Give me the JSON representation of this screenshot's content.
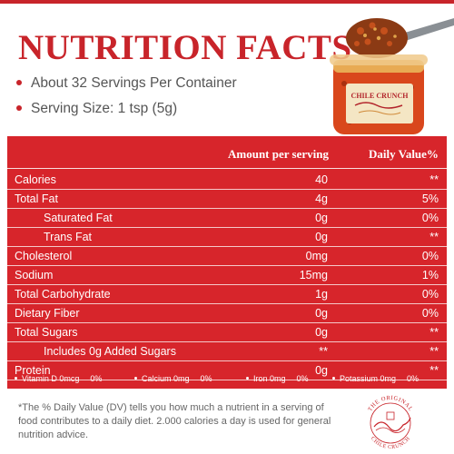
{
  "title": "NUTRITION FACTS",
  "bullets": [
    "About 32 Servings Per Container",
    "Serving Size: 1 tsp (5g)"
  ],
  "product": {
    "label": "CHILE CRUNCH"
  },
  "panel": {
    "header_amount": "Amount per serving",
    "header_dv": "Daily Value%",
    "rows": [
      {
        "name": "Calories",
        "amount": "40",
        "dv": "**"
      },
      {
        "name": "Total Fat",
        "amount": "4g",
        "dv": "5%"
      },
      {
        "name": "Saturated Fat",
        "amount": "0g",
        "dv": "0%"
      },
      {
        "name": "Trans Fat",
        "amount": "0g",
        "dv": "**"
      },
      {
        "name": "Cholesterol",
        "amount": "0mg",
        "dv": "0%"
      },
      {
        "name": "Sodium",
        "amount": "15mg",
        "dv": "1%"
      },
      {
        "name": "Total Carbohydrate",
        "amount": "1g",
        "dv": "0%"
      },
      {
        "name": "Dietary Fiber",
        "amount": "0g",
        "dv": "0%"
      },
      {
        "name": "Total Sugars",
        "amount": "0g",
        "dv": "**"
      },
      {
        "name": "Includes 0g Added Sugars",
        "amount": "**",
        "dv": "**"
      },
      {
        "name": "Protein",
        "amount": "0g",
        "dv": "**"
      }
    ],
    "vitamins": [
      {
        "name": "Vitamin D 0mcg",
        "pct": "0%"
      },
      {
        "name": "Calcium 0mg",
        "pct": "0%"
      },
      {
        "name": "Iron 0mg",
        "pct": "0%"
      },
      {
        "name": "Potassium 0mg",
        "pct": "0%"
      }
    ]
  },
  "footnote": "*The % Daily Value (DV) tells you how much a nutrient in a serving of food contributes to a daily diet. 2.000 calories a day is used for general nutrition advice.",
  "seal": {
    "top_text": "THE ORIGINAL",
    "bottom_text": "CHILE CRUNCH"
  },
  "colors": {
    "accent": "#c8242a",
    "panel": "#d7252b",
    "text": "#555555"
  }
}
